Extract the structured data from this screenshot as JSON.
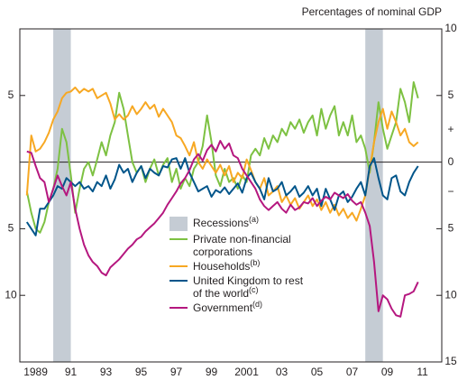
{
  "chart_data": {
    "type": "line",
    "ylabel": "Percentages of nominal GDP",
    "sign_labels": {
      "positive": "+",
      "negative": "−"
    },
    "xlim": [
      1988.6,
      2012.6
    ],
    "xticks": [
      {
        "value": 1989.5,
        "label": "1989"
      },
      {
        "value": 1991.5,
        "label": "91"
      },
      {
        "value": 1993.5,
        "label": "93"
      },
      {
        "value": 1995.5,
        "label": "95"
      },
      {
        "value": 1997.5,
        "label": "97"
      },
      {
        "value": 1999.5,
        "label": "99"
      },
      {
        "value": 2001.5,
        "label": "2001"
      },
      {
        "value": 2003.5,
        "label": "03"
      },
      {
        "value": 2005.5,
        "label": "05"
      },
      {
        "value": 2007.5,
        "label": "07"
      },
      {
        "value": 2009.5,
        "label": "09"
      },
      {
        "value": 2011.5,
        "label": "11"
      }
    ],
    "ylim": [
      -15,
      10
    ],
    "yticks": [
      {
        "value": 10,
        "label": "10"
      },
      {
        "value": 5,
        "label": "5"
      },
      0,
      {
        "value": -5,
        "label": "5"
      },
      {
        "value": -10,
        "label": "10"
      },
      {
        "value": -15,
        "label": "15"
      }
    ],
    "recessions": {
      "name": "Recessions",
      "footnote": "(a)",
      "color": "#c5ccd4",
      "periods": [
        [
          1990.5,
          1991.5
        ],
        [
          2008.25,
          2009.25
        ]
      ]
    },
    "x": [
      1989,
      1989.25,
      1989.5,
      1989.75,
      1990,
      1990.25,
      1990.5,
      1990.75,
      1991,
      1991.25,
      1991.5,
      1991.75,
      1992,
      1992.25,
      1992.5,
      1992.75,
      1993,
      1993.25,
      1993.5,
      1993.75,
      1994,
      1994.25,
      1994.5,
      1994.75,
      1995,
      1995.25,
      1995.5,
      1995.75,
      1996,
      1996.25,
      1996.5,
      1996.75,
      1997,
      1997.25,
      1997.5,
      1997.75,
      1998,
      1998.25,
      1998.5,
      1998.75,
      1999,
      1999.25,
      1999.5,
      1999.75,
      2000,
      2000.25,
      2000.5,
      2000.75,
      2001,
      2001.25,
      2001.5,
      2001.75,
      2002,
      2002.25,
      2002.5,
      2002.75,
      2003,
      2003.25,
      2003.5,
      2003.75,
      2004,
      2004.25,
      2004.5,
      2004.75,
      2005,
      2005.25,
      2005.5,
      2005.75,
      2006,
      2006.25,
      2006.5,
      2006.75,
      2007,
      2007.25,
      2007.5,
      2007.75,
      2008,
      2008.25,
      2008.5,
      2008.75,
      2009,
      2009.25,
      2009.5,
      2009.75,
      2010,
      2010.25,
      2010.5,
      2010.75,
      2011,
      2011.25
    ],
    "series": [
      {
        "name": "Private non-financial corporations",
        "color": "#7dc142",
        "values": [
          -2.2,
          -3.8,
          -5.0,
          -5.3,
          -4.5,
          -3.0,
          -2.0,
          -0.5,
          2.5,
          1.5,
          -1.0,
          -3.8,
          -2.0,
          -0.5,
          0.0,
          -1.0,
          0.2,
          1.5,
          0.5,
          2.0,
          3.0,
          5.2,
          4.0,
          2.0,
          0.0,
          -0.8,
          -0.3,
          -1.5,
          -0.5,
          0.2,
          -1.0,
          -0.2,
          0.3,
          -1.5,
          -0.5,
          -2.0,
          -1.2,
          -1.8,
          -0.5,
          0.0,
          1.2,
          3.5,
          1.5,
          -1.0,
          -1.8,
          -0.5,
          -1.5,
          -1.2,
          -2.0,
          -1.0,
          -1.5,
          0.5,
          1.0,
          0.5,
          1.8,
          1.0,
          2.0,
          1.5,
          2.5,
          2.0,
          3.0,
          2.5,
          3.2,
          2.2,
          3.0,
          3.5,
          2.0,
          4.0,
          2.5,
          3.5,
          4.2,
          2.0,
          3.0,
          2.0,
          3.5,
          1.5,
          2.0,
          1.0,
          -0.8,
          1.5,
          4.5,
          2.5,
          1.0,
          2.0,
          3.0,
          5.5,
          4.5,
          3.0,
          6.0,
          4.8
        ]
      },
      {
        "name": "Households",
        "footnote": "(b)",
        "color": "#f7a823",
        "values": [
          -2.5,
          2.0,
          0.8,
          1.0,
          1.5,
          2.2,
          3.2,
          3.8,
          4.8,
          5.2,
          5.3,
          5.6,
          5.2,
          5.5,
          5.3,
          5.5,
          4.8,
          5.0,
          5.2,
          4.4,
          3.2,
          3.6,
          3.2,
          3.5,
          4.2,
          3.6,
          4.0,
          4.5,
          4.0,
          4.3,
          3.4,
          4.0,
          3.5,
          3.0,
          2.0,
          1.8,
          1.2,
          0.5,
          1.5,
          0.0,
          -0.5,
          0.2,
          -0.3,
          -0.8,
          -0.2,
          -1.0,
          -0.3,
          -1.5,
          -0.8,
          -1.2,
          0.2,
          -0.6,
          -1.5,
          -2.0,
          -1.2,
          -2.5,
          -2.2,
          -1.8,
          -3.0,
          -2.5,
          -3.2,
          -2.7,
          -3.5,
          -3.0,
          -2.5,
          -3.3,
          -2.8,
          -3.6,
          -3.0,
          -3.8,
          -3.2,
          -4.0,
          -3.5,
          -4.2,
          -3.8,
          -4.4,
          -3.5,
          -2.5,
          -0.5,
          1.5,
          3.0,
          4.0,
          2.5,
          3.8,
          3.0,
          2.0,
          2.5,
          1.5,
          1.2,
          1.5
        ]
      },
      {
        "name": "United Kingdom to rest of the world",
        "footnote": "(c)",
        "color": "#00558a",
        "values": [
          -4.5,
          -5.0,
          -5.5,
          -3.5,
          -3.5,
          -3.0,
          -2.5,
          -1.8,
          -2.0,
          -1.2,
          -1.5,
          -1.8,
          -1.5,
          -2.0,
          -1.8,
          -2.2,
          -1.5,
          -1.8,
          -1.0,
          -2.0,
          -1.3,
          -0.2,
          -0.8,
          -0.5,
          -1.5,
          -0.8,
          -0.3,
          -1.2,
          -0.5,
          -0.8,
          -1.0,
          -0.3,
          -0.4,
          0.2,
          0.3,
          -0.5,
          0.3,
          -0.8,
          -1.5,
          -2.2,
          -2.0,
          -1.8,
          -2.6,
          -2.1,
          -2.3,
          -1.9,
          -2.4,
          -2.0,
          -1.6,
          -2.3,
          -1.2,
          -0.8,
          -1.5,
          -2.0,
          -2.8,
          -1.2,
          -2.2,
          -2.0,
          -1.5,
          -2.5,
          -2.2,
          -1.8,
          -2.6,
          -2.3,
          -1.8,
          -2.5,
          -2.0,
          -3.3,
          -2.0,
          -2.8,
          -3.6,
          -2.5,
          -2.2,
          -3.0,
          -2.6,
          -2.0,
          -1.5,
          -2.5,
          -0.3,
          0.3,
          -1.2,
          -2.5,
          -2.8,
          -1.2,
          -1.0,
          -2.2,
          -2.5,
          -1.5,
          -0.8,
          -0.3
        ]
      },
      {
        "name": "Government",
        "footnote": "(d)",
        "color": "#b5177f",
        "values": [
          0.8,
          0.7,
          -0.3,
          -1.2,
          -1.5,
          -3.0,
          -2.0,
          -1.0,
          -1.8,
          -2.5,
          -1.5,
          -3.5,
          -5.0,
          -6.2,
          -7.0,
          -7.5,
          -7.8,
          -8.3,
          -8.5,
          -7.9,
          -7.6,
          -7.3,
          -6.9,
          -6.5,
          -6.2,
          -5.8,
          -5.6,
          -5.2,
          -4.9,
          -4.6,
          -4.2,
          -3.8,
          -3.2,
          -2.7,
          -2.2,
          -1.6,
          -1.2,
          -0.6,
          0.2,
          0.6,
          0.1,
          0.9,
          1.3,
          0.8,
          1.6,
          1.0,
          1.4,
          0.5,
          0.3,
          -0.5,
          -1.0,
          -1.5,
          -2.0,
          -2.8,
          -3.3,
          -3.6,
          -3.3,
          -3.0,
          -3.5,
          -3.8,
          -3.2,
          -3.6,
          -3.4,
          -3.0,
          -3.1,
          -2.7,
          -3.3,
          -2.9,
          -2.6,
          -2.8,
          -2.3,
          -2.5,
          -2.7,
          -2.4,
          -2.9,
          -3.2,
          -3.0,
          -3.8,
          -4.8,
          -7.5,
          -11.2,
          -10.0,
          -10.3,
          -11.0,
          -11.5,
          -11.6,
          -10.0,
          -9.9,
          -9.7,
          -9.0
        ]
      }
    ]
  }
}
